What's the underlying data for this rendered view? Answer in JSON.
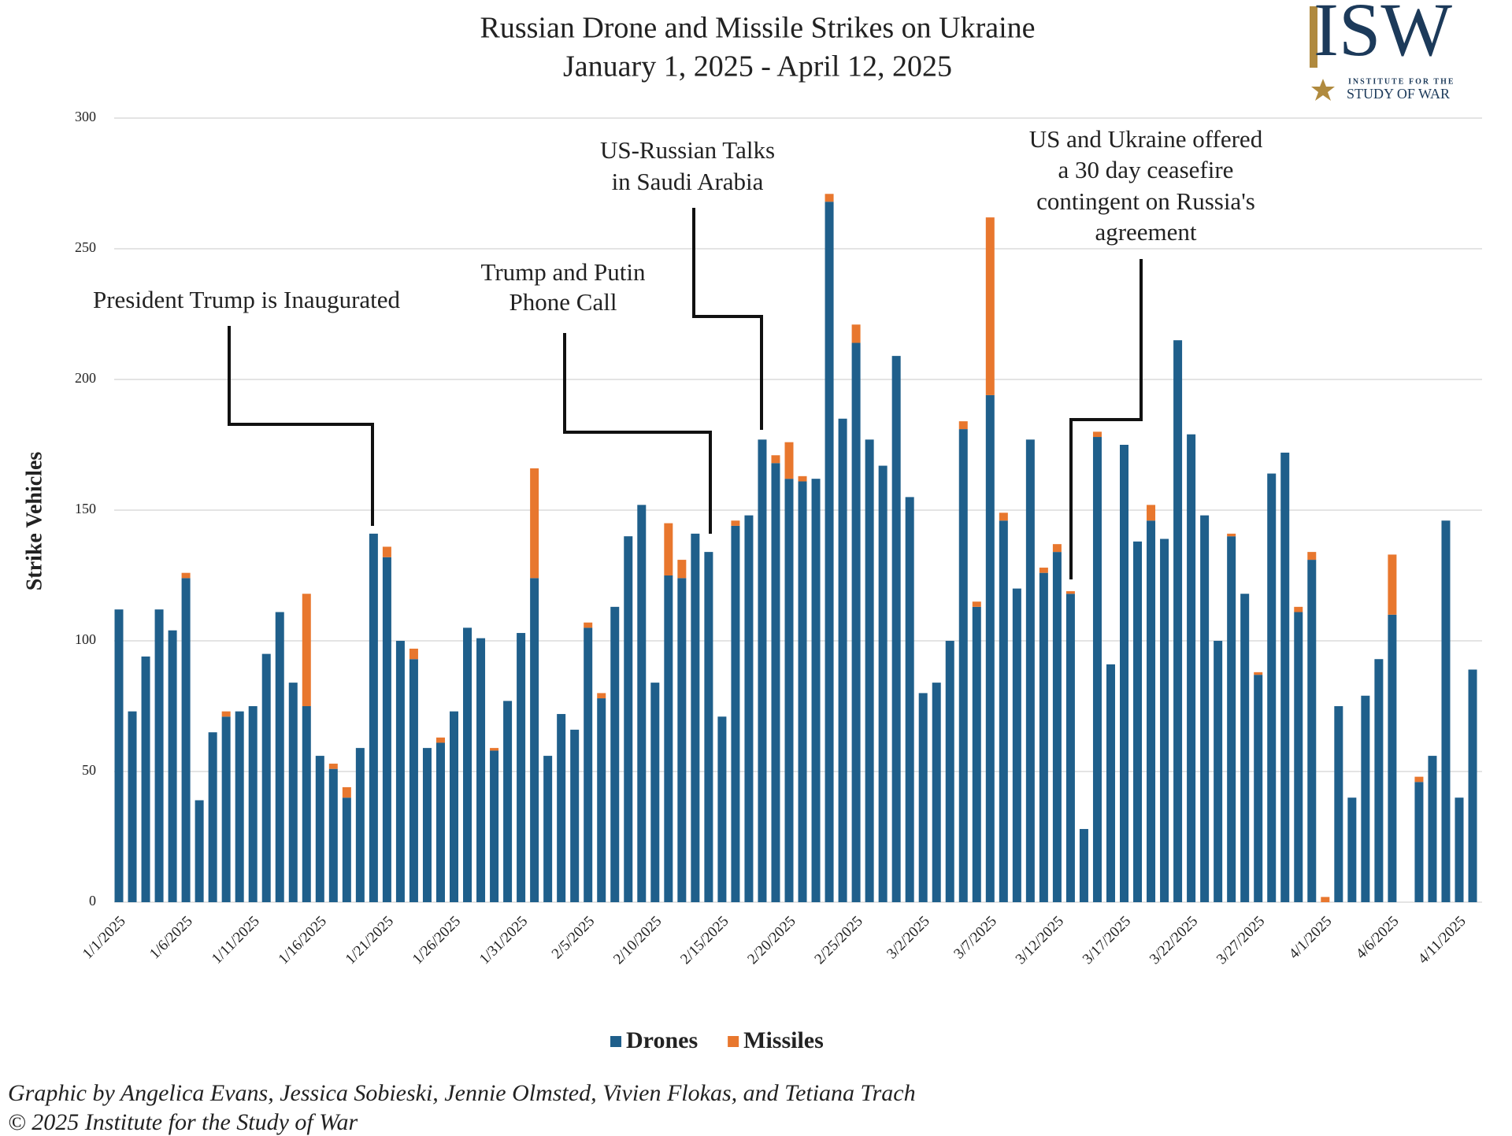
{
  "chart_data": {
    "type": "bar",
    "stacked": true,
    "title": "Russian Drone and Missile Strikes on Ukraine",
    "subtitle": "January 1, 2025 - April 12, 2025",
    "y_label": "Strike Vehicles",
    "categories": [
      "1/1/2025",
      null,
      null,
      null,
      null,
      "1/6/2025",
      null,
      null,
      null,
      null,
      "1/11/2025",
      null,
      null,
      null,
      null,
      "1/16/2025",
      null,
      null,
      null,
      null,
      "1/21/2025",
      null,
      null,
      null,
      null,
      "1/26/2025",
      null,
      null,
      null,
      null,
      "1/31/2025",
      null,
      null,
      null,
      null,
      "2/5/2025",
      null,
      null,
      null,
      null,
      "2/10/2025",
      null,
      null,
      null,
      null,
      "2/15/2025",
      null,
      null,
      null,
      null,
      "2/20/2025",
      null,
      null,
      null,
      null,
      "2/25/2025",
      null,
      null,
      null,
      null,
      "3/2/2025",
      null,
      null,
      null,
      null,
      "3/7/2025",
      null,
      null,
      null,
      null,
      "3/12/2025",
      null,
      null,
      null,
      null,
      "3/17/2025",
      null,
      null,
      null,
      null,
      "3/22/2025",
      null,
      null,
      null,
      null,
      "3/27/2025",
      null,
      null,
      null,
      null,
      "4/1/2025",
      null,
      null,
      null,
      null,
      "4/6/2025",
      null,
      null,
      null,
      null,
      "4/11/2025",
      null
    ],
    "series": [
      {
        "name": "Drones",
        "color": "#1f5f8b",
        "values": [
          112,
          73,
          94,
          112,
          104,
          124,
          39,
          65,
          71,
          73,
          75,
          95,
          111,
          84,
          75,
          56,
          51,
          40,
          59,
          141,
          132,
          100,
          93,
          59,
          61,
          73,
          105,
          101,
          58,
          77,
          103,
          124,
          56,
          72,
          66,
          105,
          78,
          113,
          140,
          152,
          84,
          125,
          124,
          141,
          134,
          71,
          144,
          148,
          177,
          168,
          162,
          161,
          162,
          268,
          185,
          214,
          177,
          167,
          209,
          155,
          80,
          84,
          100,
          181,
          113,
          194,
          146,
          120,
          177,
          126,
          134,
          118,
          28,
          178,
          91,
          175,
          138,
          146,
          139,
          215,
          179,
          148,
          100,
          140,
          118,
          87,
          164,
          172,
          111,
          131,
          0,
          75,
          40,
          79,
          93,
          110,
          0,
          46,
          56,
          146,
          40,
          89
        ]
      },
      {
        "name": "Missiles",
        "color": "#e8772e",
        "values": [
          0,
          0,
          0,
          0,
          0,
          2,
          0,
          0,
          2,
          0,
          0,
          0,
          0,
          0,
          43,
          0,
          2,
          4,
          0,
          0,
          4,
          0,
          4,
          0,
          2,
          0,
          0,
          0,
          1,
          0,
          0,
          42,
          0,
          0,
          0,
          2,
          2,
          0,
          0,
          0,
          0,
          20,
          7,
          0,
          0,
          0,
          2,
          0,
          0,
          3,
          14,
          2,
          0,
          3,
          0,
          7,
          0,
          0,
          0,
          0,
          0,
          0,
          0,
          3,
          2,
          68,
          3,
          0,
          0,
          2,
          3,
          1,
          0,
          2,
          0,
          0,
          0,
          6,
          0,
          0,
          0,
          0,
          0,
          1,
          0,
          1,
          0,
          0,
          2,
          3,
          2,
          0,
          0,
          0,
          0,
          23,
          0,
          2,
          0,
          0,
          0,
          0
        ]
      }
    ],
    "ylim": [
      0,
      300
    ],
    "yticks": [
      0,
      50,
      100,
      150,
      200,
      250,
      300
    ],
    "grid": true,
    "legend": "bottom",
    "annotations": [
      {
        "lines": [
          "President Trump is Inaugurated"
        ]
      },
      {
        "lines": [
          "Trump and Putin",
          "Phone Call"
        ]
      },
      {
        "lines": [
          "US-Russian Talks",
          "in Saudi Arabia"
        ]
      },
      {
        "lines": [
          "US and Ukraine offered",
          "a 30 day ceasefire",
          "contingent on Russia's",
          "agreement"
        ]
      }
    ],
    "logo": {
      "mark": "ISW",
      "line1": "INSTITUTE FOR THE",
      "line2": "STUDY OF WAR"
    },
    "credits": [
      "Graphic by Angelica Evans, Jessica Sobieski, Jennie Olmsted, Vivien Flokas, and Tetiana Trach",
      "© 2025 Institute for the Study of War"
    ]
  }
}
